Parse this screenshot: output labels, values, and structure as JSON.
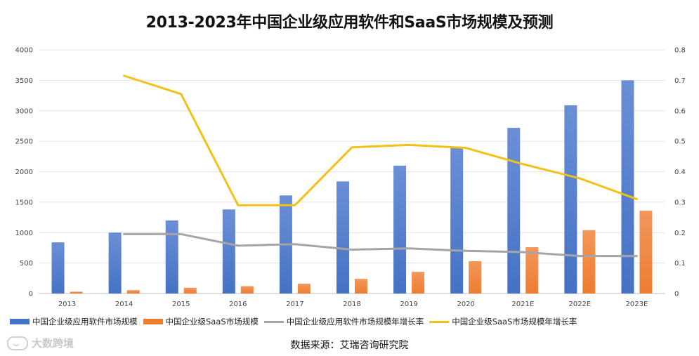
{
  "title": "2013-2023年中国企业级应用软件和SaaS市场规模及预测",
  "source": "数据来源：艾瑞咨询研究院",
  "watermark": "大数跨境",
  "colors": {
    "bar_app": "#4472c4",
    "bar_saas": "#ed7d31",
    "line_app": "#a5a5a5",
    "line_saas": "#f2c016",
    "grid": "#e4e4e4"
  },
  "chart_data": {
    "type": "bar",
    "categories": [
      "2013",
      "2014",
      "2015",
      "2016",
      "2017",
      "2018",
      "2019",
      "2020",
      "2021E",
      "2022E",
      "2023E"
    ],
    "y_left": {
      "ylim": [
        0,
        4000
      ],
      "ticks": [
        "0",
        "500",
        "1000",
        "1500",
        "2000",
        "2500",
        "3000",
        "3500",
        "4000"
      ]
    },
    "y_right": {
      "ylim": [
        0,
        0.8
      ],
      "ticks": [
        "0",
        "0.1",
        "0.2",
        "0.3",
        "0.4",
        "0.5",
        "0.6",
        "0.7",
        "0.8"
      ]
    },
    "grid": true,
    "legend_position": "bottom",
    "series": [
      {
        "name": "中国企业级应用软件市场规模",
        "type": "bar",
        "axis": "left",
        "values": [
          840,
          1000,
          1200,
          1380,
          1610,
          1840,
          2100,
          2400,
          2720,
          3090,
          3500
        ]
      },
      {
        "name": "中国企业级SaaS市场规模",
        "type": "bar",
        "axis": "left",
        "values": [
          30,
          55,
          95,
          120,
          160,
          240,
          355,
          530,
          760,
          1040,
          1360
        ]
      },
      {
        "name": "中国企业级应用软件市场规模年增长率",
        "type": "line",
        "axis": "right",
        "values": [
          null,
          0.195,
          0.195,
          0.157,
          0.162,
          0.144,
          0.148,
          0.14,
          0.136,
          0.123,
          0.123
        ]
      },
      {
        "name": "中国企业级SaaS市场规模年增长率",
        "type": "line",
        "axis": "right",
        "values": [
          null,
          0.715,
          0.655,
          0.29,
          0.29,
          0.48,
          0.488,
          0.478,
          0.425,
          0.378,
          0.31
        ]
      }
    ]
  }
}
